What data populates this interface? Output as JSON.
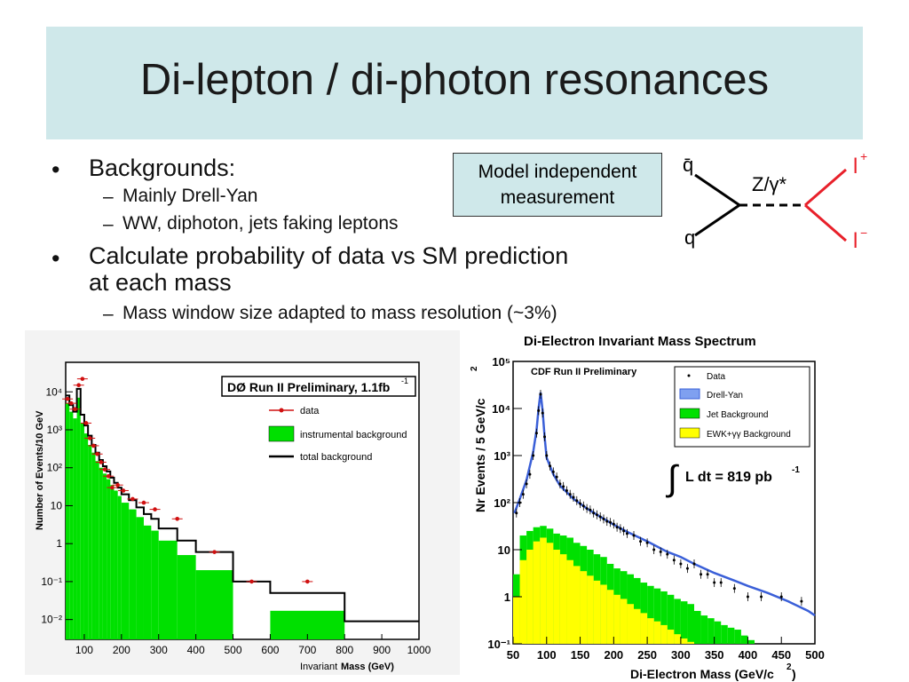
{
  "slide": {
    "title": "Di-lepton / di-photon resonances",
    "bullets": [
      {
        "text": "Backgrounds:",
        "sub": [
          "Mainly Drell-Yan",
          "WW, diphoton, jets faking leptons"
        ]
      },
      {
        "text": "Calculate probability of data vs SM prediction",
        "text2": "at each mass",
        "sub": [
          "Mass window size adapted to mass resolution (~3%)"
        ]
      }
    ],
    "callout": {
      "line1": "Model independent",
      "line2": "measurement"
    },
    "bullet_mark": "•",
    "dash_mark": "–"
  },
  "feynman": {
    "q_bar": "q̄",
    "q": "q",
    "boson": "Z/γ*",
    "l_plus": "l",
    "l_plus_sup": "+",
    "l_minus": "l",
    "l_minus_sup": "−",
    "colors": {
      "quark": "#000000",
      "lepton": "#e8202a"
    }
  },
  "chart_data": [
    {
      "type": "area",
      "title": "DØ Run II Preliminary, 1.1fb",
      "title_sup": "-1",
      "xlabel_pre": "Invariant ",
      "xlabel_bold": "Mass (GeV)",
      "ylabel": "Number of Events/10 GeV",
      "log_y": true,
      "xlim": [
        50,
        1000
      ],
      "x_ticks": [
        100,
        200,
        300,
        400,
        500,
        600,
        700,
        800,
        900,
        1000
      ],
      "y_tick_labels": [
        "10⁴",
        "10³",
        "10²",
        "10",
        "1",
        "10⁻¹",
        "10⁻²"
      ],
      "y_tick_values": [
        10000,
        1000,
        100,
        10,
        1,
        0.1,
        0.01
      ],
      "legend": [
        "data",
        "instrumental background",
        "total background"
      ],
      "colors": {
        "instrumental": "#00e000",
        "total": "#000000",
        "data": "#d01010"
      },
      "bins_instrumental": [
        [
          50,
          60,
          5000
        ],
        [
          60,
          70,
          3000
        ],
        [
          70,
          80,
          2000
        ],
        [
          80,
          90,
          7000
        ],
        [
          90,
          100,
          1500
        ],
        [
          100,
          110,
          800
        ],
        [
          110,
          120,
          400
        ],
        [
          120,
          130,
          250
        ],
        [
          130,
          140,
          150
        ],
        [
          140,
          150,
          100
        ],
        [
          150,
          160,
          70
        ],
        [
          160,
          170,
          50
        ],
        [
          170,
          180,
          35
        ],
        [
          180,
          190,
          25
        ],
        [
          190,
          200,
          18
        ],
        [
          200,
          220,
          12
        ],
        [
          220,
          240,
          8
        ],
        [
          240,
          260,
          5
        ],
        [
          260,
          280,
          3
        ],
        [
          280,
          300,
          2.2
        ],
        [
          300,
          350,
          1.2
        ],
        [
          350,
          400,
          0.5
        ],
        [
          400,
          500,
          0.2
        ],
        [
          600,
          800,
          0.017
        ]
      ],
      "bins_total": [
        [
          50,
          60,
          8000
        ],
        [
          60,
          70,
          4500
        ],
        [
          70,
          80,
          3000
        ],
        [
          80,
          90,
          12000
        ],
        [
          90,
          100,
          2500
        ],
        [
          100,
          110,
          1300
        ],
        [
          110,
          120,
          700
        ],
        [
          120,
          130,
          400
        ],
        [
          130,
          140,
          250
        ],
        [
          140,
          150,
          160
        ],
        [
          150,
          160,
          110
        ],
        [
          160,
          170,
          80
        ],
        [
          170,
          180,
          55
        ],
        [
          180,
          190,
          40
        ],
        [
          190,
          200,
          30
        ],
        [
          200,
          220,
          20
        ],
        [
          220,
          240,
          14
        ],
        [
          240,
          260,
          9
        ],
        [
          260,
          280,
          6
        ],
        [
          280,
          300,
          4.5
        ],
        [
          300,
          350,
          2.5
        ],
        [
          350,
          400,
          1.2
        ],
        [
          400,
          500,
          0.6
        ],
        [
          500,
          600,
          0.1
        ],
        [
          600,
          800,
          0.05
        ],
        [
          800,
          1000,
          0.009
        ]
      ],
      "data_points": [
        [
          55,
          6500
        ],
        [
          65,
          5000
        ],
        [
          75,
          3500
        ],
        [
          85,
          15000
        ],
        [
          95,
          22000
        ],
        [
          105,
          1500
        ],
        [
          115,
          600
        ],
        [
          125,
          380
        ],
        [
          135,
          230
        ],
        [
          145,
          140
        ],
        [
          155,
          90
        ],
        [
          165,
          60
        ],
        [
          175,
          30
        ],
        [
          190,
          35
        ],
        [
          205,
          25
        ],
        [
          230,
          15
        ],
        [
          260,
          12
        ],
        [
          290,
          8
        ],
        [
          350,
          4.5
        ],
        [
          450,
          0.6
        ],
        [
          550,
          0.1
        ],
        [
          700,
          0.1
        ]
      ]
    },
    {
      "type": "area",
      "title": "Di-Electron Invariant Mass Spectrum",
      "inner_label": "CDF Run II Preliminary",
      "xlabel": "Di-Electron Mass (GeV/c",
      "xlabel_sup": "2",
      "xlabel_end": ")",
      "ylabel": "Nr Events / 5 GeV/c",
      "ylabel_sup": "2",
      "log_y": true,
      "xlim": [
        50,
        500
      ],
      "x_ticks": [
        50,
        100,
        150,
        200,
        250,
        300,
        350,
        400,
        450,
        500
      ],
      "y_tick_labels": [
        "10⁵",
        "10⁴",
        "10³",
        "10²",
        "10",
        "1",
        "10⁻¹"
      ],
      "y_tick_values": [
        100000,
        10000,
        1000,
        100,
        10,
        1,
        0.1
      ],
      "legend": [
        "Data",
        "Drell-Yan",
        "Jet Background",
        "EWK+γγ Background"
      ],
      "lumi": "L dt = 819 pb",
      "lumi_sup": "-1",
      "lumi_integral": "∫",
      "colors": {
        "drell_yan": "#3a5fd8",
        "jet": "#00e000",
        "ewk": "#ffff00",
        "data": "#000000"
      },
      "dy_curve": [
        [
          52,
          60
        ],
        [
          60,
          120
        ],
        [
          70,
          300
        ],
        [
          80,
          1200
        ],
        [
          85,
          3500
        ],
        [
          88,
          10000
        ],
        [
          91,
          22000
        ],
        [
          94,
          9000
        ],
        [
          97,
          2500
        ],
        [
          100,
          900
        ],
        [
          110,
          400
        ],
        [
          120,
          230
        ],
        [
          140,
          120
        ],
        [
          160,
          75
        ],
        [
          180,
          50
        ],
        [
          200,
          34
        ],
        [
          220,
          24
        ],
        [
          250,
          15
        ],
        [
          280,
          9
        ],
        [
          300,
          7
        ],
        [
          320,
          5
        ],
        [
          350,
          3.2
        ],
        [
          380,
          2.2
        ],
        [
          400,
          1.7
        ],
        [
          430,
          1.2
        ],
        [
          460,
          0.8
        ],
        [
          490,
          0.5
        ],
        [
          500,
          0.4
        ]
      ],
      "jet_bins": [
        [
          50,
          3
        ],
        [
          60,
          20
        ],
        [
          70,
          25
        ],
        [
          80,
          30
        ],
        [
          90,
          32
        ],
        [
          100,
          28
        ],
        [
          110,
          22
        ],
        [
          120,
          20
        ],
        [
          130,
          18
        ],
        [
          140,
          14
        ],
        [
          150,
          12
        ],
        [
          160,
          10
        ],
        [
          170,
          8
        ],
        [
          180,
          7
        ],
        [
          190,
          5
        ],
        [
          200,
          4
        ],
        [
          210,
          3.5
        ],
        [
          220,
          3
        ],
        [
          230,
          2.5
        ],
        [
          240,
          2
        ],
        [
          250,
          1.7
        ],
        [
          260,
          1.5
        ],
        [
          270,
          1.3
        ],
        [
          280,
          1.1
        ],
        [
          290,
          0.9
        ],
        [
          300,
          0.8
        ],
        [
          310,
          0.7
        ],
        [
          320,
          0.5
        ],
        [
          330,
          0.4
        ],
        [
          340,
          0.35
        ],
        [
          350,
          0.3
        ],
        [
          360,
          0.25
        ],
        [
          370,
          0.22
        ],
        [
          380,
          0.2
        ],
        [
          390,
          0.15
        ],
        [
          400,
          0.12
        ],
        [
          410,
          0.1
        ]
      ],
      "ewk_bins": [
        [
          50,
          1
        ],
        [
          60,
          6
        ],
        [
          70,
          10
        ],
        [
          80,
          15
        ],
        [
          90,
          18
        ],
        [
          100,
          14
        ],
        [
          110,
          10
        ],
        [
          120,
          8
        ],
        [
          130,
          6
        ],
        [
          140,
          4.5
        ],
        [
          150,
          3.5
        ],
        [
          160,
          2.8
        ],
        [
          170,
          2.2
        ],
        [
          180,
          1.8
        ],
        [
          190,
          1.4
        ],
        [
          200,
          1.1
        ],
        [
          210,
          0.9
        ],
        [
          220,
          0.7
        ],
        [
          230,
          0.55
        ],
        [
          240,
          0.45
        ],
        [
          250,
          0.35
        ],
        [
          260,
          0.3
        ],
        [
          270,
          0.25
        ],
        [
          280,
          0.2
        ],
        [
          290,
          0.16
        ],
        [
          300,
          0.13
        ],
        [
          310,
          0.11
        ],
        [
          320,
          0.1
        ]
      ],
      "data_points": [
        [
          55,
          60
        ],
        [
          60,
          100
        ],
        [
          65,
          150
        ],
        [
          70,
          250
        ],
        [
          75,
          400
        ],
        [
          80,
          1000
        ],
        [
          85,
          3000
        ],
        [
          88,
          9000
        ],
        [
          91,
          20000
        ],
        [
          94,
          8000
        ],
        [
          97,
          2500
        ],
        [
          100,
          1000
        ],
        [
          105,
          600
        ],
        [
          110,
          450
        ],
        [
          115,
          350
        ],
        [
          120,
          250
        ],
        [
          125,
          220
        ],
        [
          130,
          180
        ],
        [
          135,
          150
        ],
        [
          140,
          130
        ],
        [
          145,
          110
        ],
        [
          150,
          95
        ],
        [
          155,
          85
        ],
        [
          160,
          75
        ],
        [
          165,
          70
        ],
        [
          170,
          60
        ],
        [
          175,
          55
        ],
        [
          180,
          50
        ],
        [
          185,
          45
        ],
        [
          190,
          40
        ],
        [
          195,
          38
        ],
        [
          200,
          35
        ],
        [
          205,
          30
        ],
        [
          210,
          28
        ],
        [
          215,
          25
        ],
        [
          220,
          22
        ],
        [
          230,
          20
        ],
        [
          240,
          15
        ],
        [
          250,
          14
        ],
        [
          260,
          10
        ],
        [
          270,
          9
        ],
        [
          280,
          8
        ],
        [
          290,
          6
        ],
        [
          300,
          5
        ],
        [
          310,
          4
        ],
        [
          320,
          5
        ],
        [
          330,
          3
        ],
        [
          340,
          3
        ],
        [
          350,
          2
        ],
        [
          360,
          2
        ],
        [
          380,
          1.5
        ],
        [
          400,
          1
        ],
        [
          420,
          1
        ],
        [
          450,
          1
        ],
        [
          480,
          0.8
        ]
      ]
    }
  ]
}
